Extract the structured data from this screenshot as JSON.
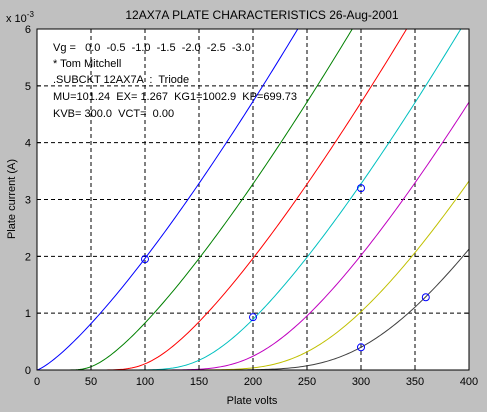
{
  "chart_data": {
    "type": "line",
    "title": "12AX7A PLATE CHARACTERISTICS  26-Aug-2001",
    "xlabel": "Plate volts",
    "ylabel": "Plate current (A)",
    "y_exponent_label": "x 10",
    "y_exponent_power": "-3",
    "xlim": [
      0,
      400
    ],
    "ylim": [
      0,
      6
    ],
    "x_ticks": [
      0,
      50,
      100,
      150,
      200,
      250,
      300,
      350,
      400
    ],
    "x_tick_labels": [
      "0",
      "50",
      "100",
      "150",
      "200",
      "250",
      "300",
      "350",
      "400"
    ],
    "y_ticks": [
      0,
      1,
      2,
      3,
      4,
      5,
      6
    ],
    "y_tick_labels": [
      "0",
      "1",
      "2",
      "3",
      "4",
      "5",
      "6"
    ],
    "grid": true,
    "grid_style": "dashed",
    "annotations": [
      "Vg =   0.0  -0.5  -1.0  -1.5  -2.0  -2.5  -3.0",
      "* Tom Mitchell",
      ".SUBCKT 12AX7A  :  Triode",
      "MU=101.24  EX= 1.267  KG1=1002.9  KP=699.73",
      "KVB= 300.0  VCT=  0.00"
    ],
    "koren_model": {
      "mu": 101.24,
      "ex": 1.267,
      "kg1": 1002.9,
      "kp": 699.73,
      "kvb": 300.0
    },
    "series": [
      {
        "grid_voltage": 0.0,
        "color": "#0000ff"
      },
      {
        "grid_voltage": -0.5,
        "color": "#008000"
      },
      {
        "grid_voltage": -1.0,
        "color": "#ff0000"
      },
      {
        "grid_voltage": -1.5,
        "color": "#00c0c0"
      },
      {
        "grid_voltage": -2.0,
        "color": "#c000c0"
      },
      {
        "grid_voltage": -2.5,
        "color": "#c0c000"
      },
      {
        "grid_voltage": -3.0,
        "color": "#404040"
      }
    ],
    "x_sample_step": 2,
    "markers": [
      {
        "x": 100,
        "y": 1.95,
        "color": "#0000ff"
      },
      {
        "x": 200,
        "y": 0.93,
        "color": "#0000ff"
      },
      {
        "x": 300,
        "y": 3.2,
        "color": "#0000ff"
      },
      {
        "x": 300,
        "y": 0.4,
        "color": "#0000ff"
      },
      {
        "x": 360,
        "y": 1.28,
        "color": "#0000ff"
      }
    ]
  }
}
